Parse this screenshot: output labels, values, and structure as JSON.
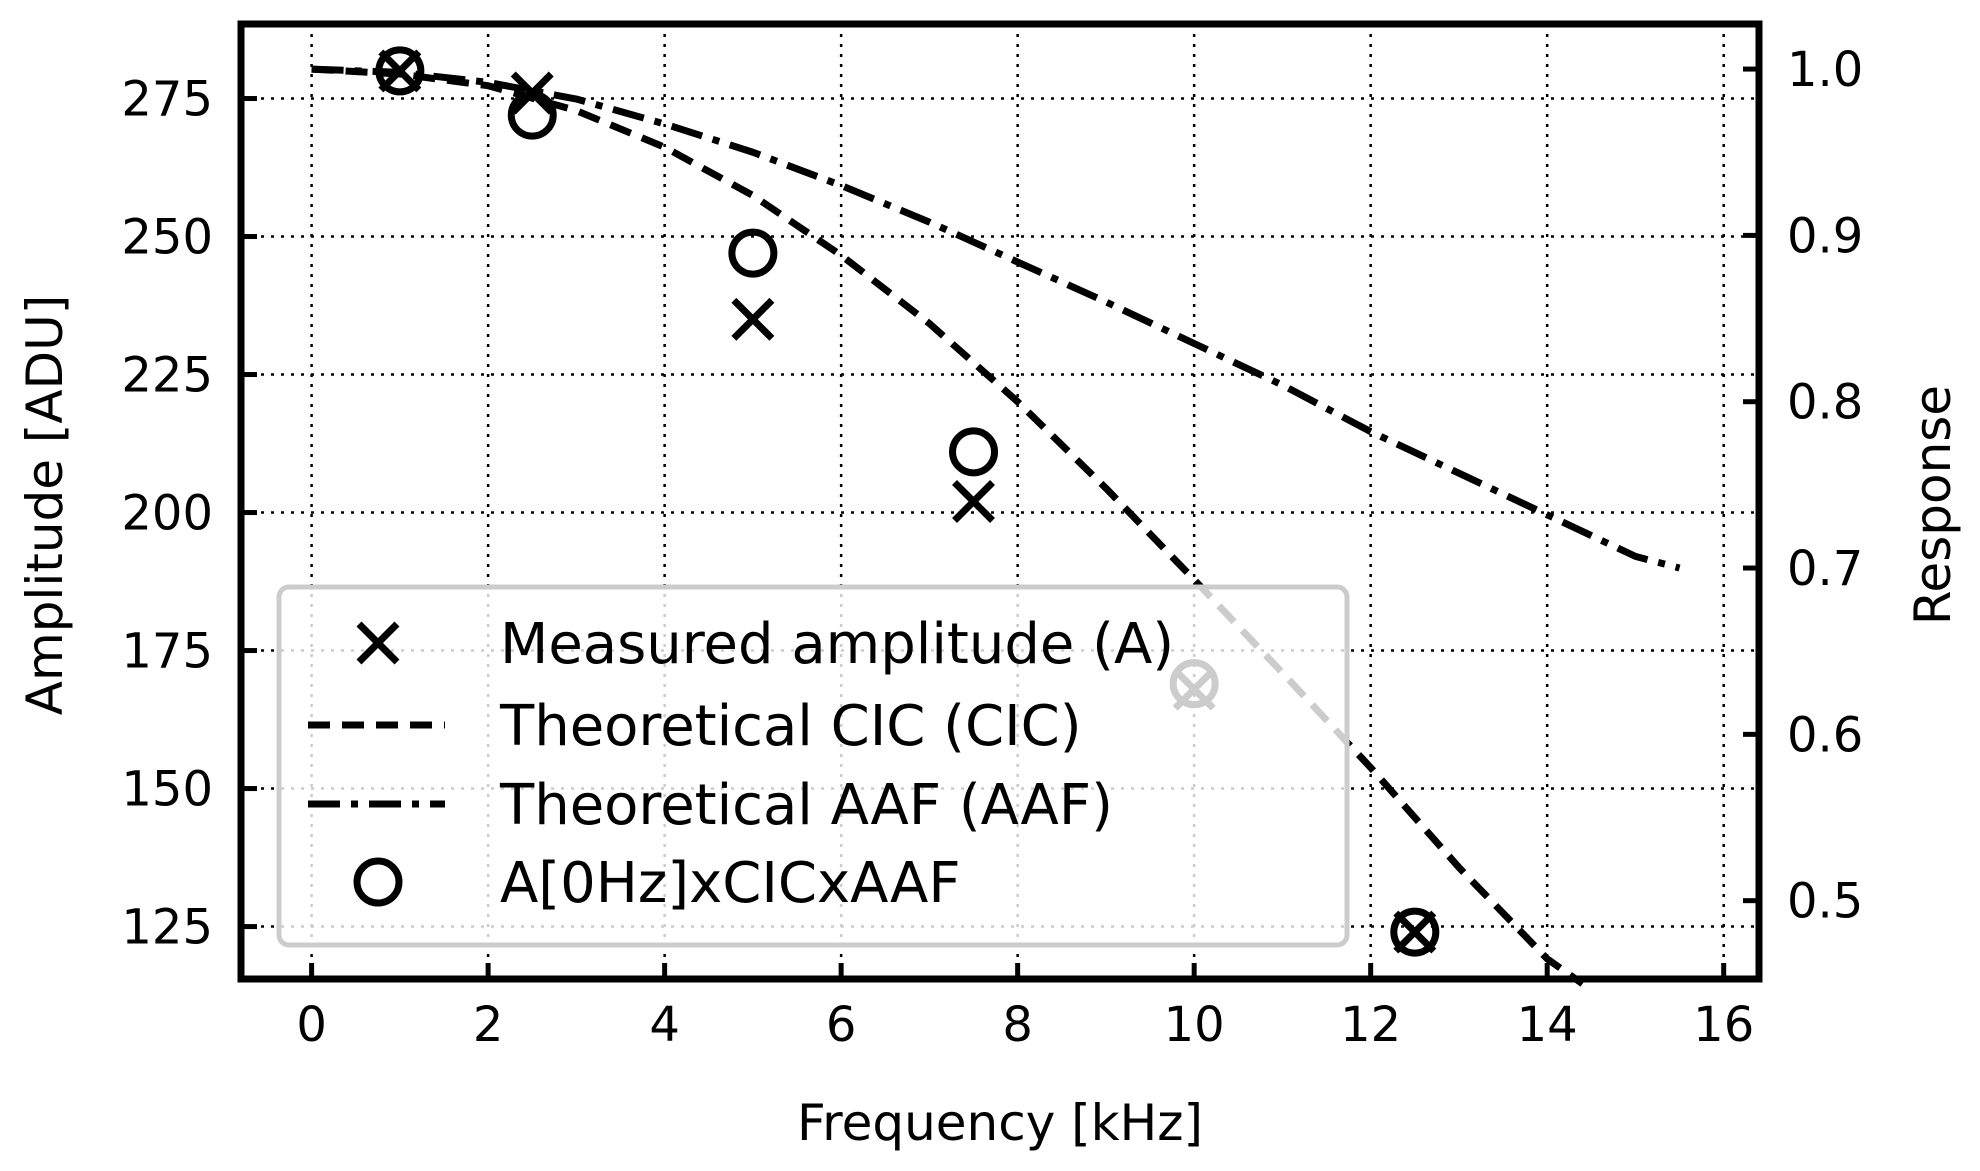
{
  "chart_data": {
    "type": "line",
    "xlabel": "Frequency [kHz]",
    "ylabel": "Amplitude [ADU]",
    "y2label": "Response",
    "xlim": [
      -0.8,
      16.4
    ],
    "ylim": [
      115.5,
      288.5
    ],
    "y2lim": [
      0.4529,
      1.0271
    ],
    "xticks": [
      0,
      2,
      4,
      6,
      8,
      10,
      12,
      14,
      16
    ],
    "yticks": [
      125,
      150,
      175,
      200,
      225,
      250,
      275
    ],
    "y2ticks": [
      "0.5",
      "0.6",
      "0.7",
      "0.8",
      "0.9",
      "1.0"
    ],
    "grid": true,
    "legend_position": "lower-left",
    "series": [
      {
        "name": "Measured amplitude (A)",
        "axis": "left",
        "style": "x-marker",
        "x": [
          1,
          2.5,
          5,
          7.5,
          10,
          12.5
        ],
        "y": [
          280,
          276,
          235,
          202,
          168,
          124
        ]
      },
      {
        "name": "Theoretical CIC (CIC)",
        "axis": "right",
        "style": "dashed",
        "x": [
          0,
          1,
          2,
          3,
          4,
          5,
          6,
          7,
          8,
          9,
          10,
          11,
          12,
          13,
          14,
          14.4
        ],
        "y": [
          1.0,
          0.997,
          0.99,
          0.975,
          0.953,
          0.924,
          0.888,
          0.847,
          0.8,
          0.748,
          0.693,
          0.637,
          0.58,
          0.52,
          0.465,
          0.45
        ]
      },
      {
        "name": "Theoretical AAF (AAF)",
        "axis": "right",
        "style": "dash-dot",
        "x": [
          0,
          1,
          2,
          3,
          4,
          5,
          6,
          7,
          8,
          9,
          10,
          11,
          12,
          13,
          14,
          15,
          15.5
        ],
        "y": [
          1.0,
          0.998,
          0.992,
          0.982,
          0.967,
          0.95,
          0.93,
          0.908,
          0.884,
          0.86,
          0.835,
          0.81,
          0.782,
          0.757,
          0.732,
          0.707,
          0.7
        ]
      },
      {
        "name": "A[0Hz]xCICxAAF",
        "axis": "left",
        "style": "o-marker",
        "x": [
          1,
          2.5,
          5,
          7.5,
          10,
          12.5
        ],
        "y": [
          280,
          272,
          247,
          211,
          169,
          124
        ]
      }
    ]
  }
}
